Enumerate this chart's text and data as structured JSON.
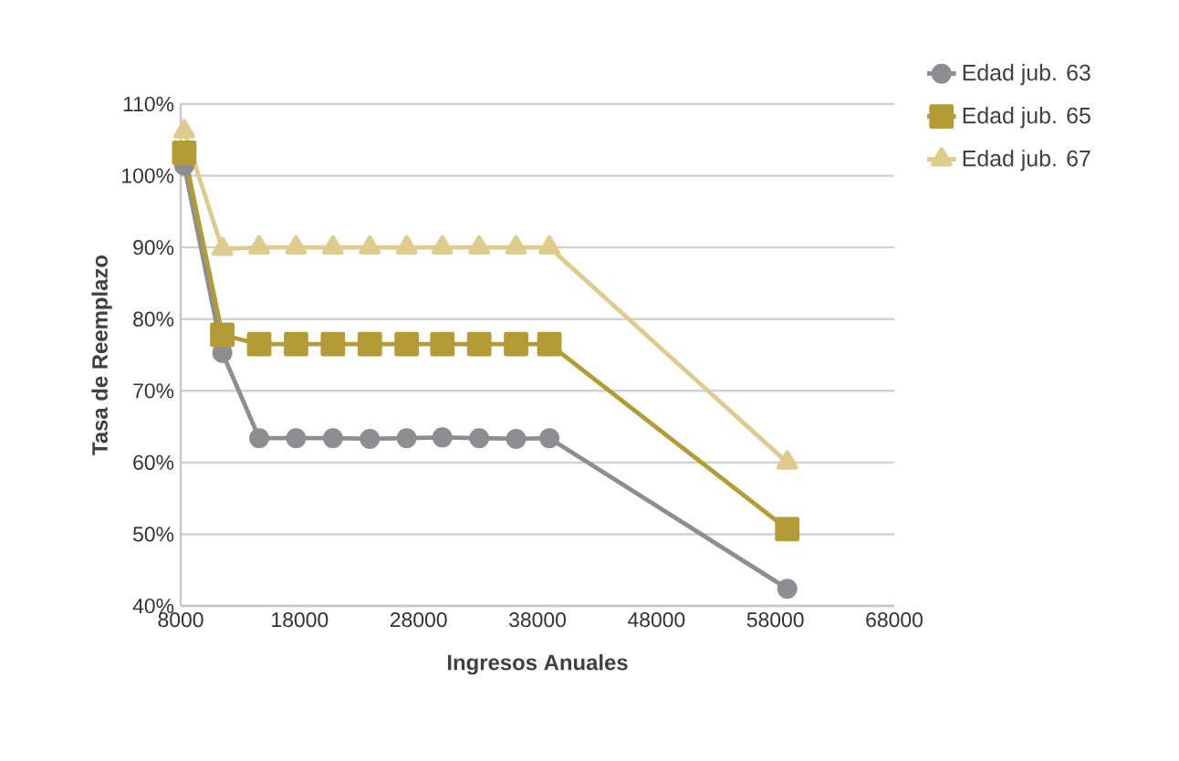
{
  "chart_data": {
    "type": "line",
    "xlabel": "Ingresos Anuales",
    "ylabel": "Tasa de Reemplazo",
    "xlim": [
      8000,
      68000
    ],
    "xticks": [
      8000,
      18000,
      28000,
      38000,
      48000,
      58000,
      68000
    ],
    "ylim": [
      40,
      110
    ],
    "yticks": [
      {
        "value": 40,
        "label": "40%"
      },
      {
        "value": 50,
        "label": "50%"
      },
      {
        "value": 60,
        "label": "60%"
      },
      {
        "value": 70,
        "label": "70%"
      },
      {
        "value": 80,
        "label": "80%"
      },
      {
        "value": 90,
        "label": "90%"
      },
      {
        "value": 100,
        "label": "100%"
      },
      {
        "value": 110,
        "label": "110%"
      }
    ],
    "grid": "y",
    "legend": "top right",
    "line_style": "solid",
    "x": [
      8300,
      11500,
      14600,
      17700,
      20800,
      23900,
      27000,
      30000,
      33100,
      36200,
      39000,
      59000
    ],
    "series": [
      {
        "name": "Edad jub. 63",
        "color": "#8e8e92",
        "marker": "circle",
        "values": [
          101.4,
          75.3,
          63.4,
          63.4,
          63.4,
          63.3,
          63.4,
          63.5,
          63.4,
          63.3,
          63.4,
          42.4
        ]
      },
      {
        "name": "Edad jub. 65",
        "color": "#b39b35",
        "marker": "square",
        "values": [
          103.2,
          77.8,
          76.5,
          76.5,
          76.5,
          76.5,
          76.5,
          76.5,
          76.5,
          76.5,
          76.5,
          50.7
        ]
      },
      {
        "name": "Edad jub. 67",
        "color": "#dfcb8e",
        "marker": "triangle",
        "values": [
          106.2,
          89.8,
          90,
          90,
          90,
          90,
          90,
          90,
          90,
          90,
          90,
          60
        ]
      }
    ]
  }
}
